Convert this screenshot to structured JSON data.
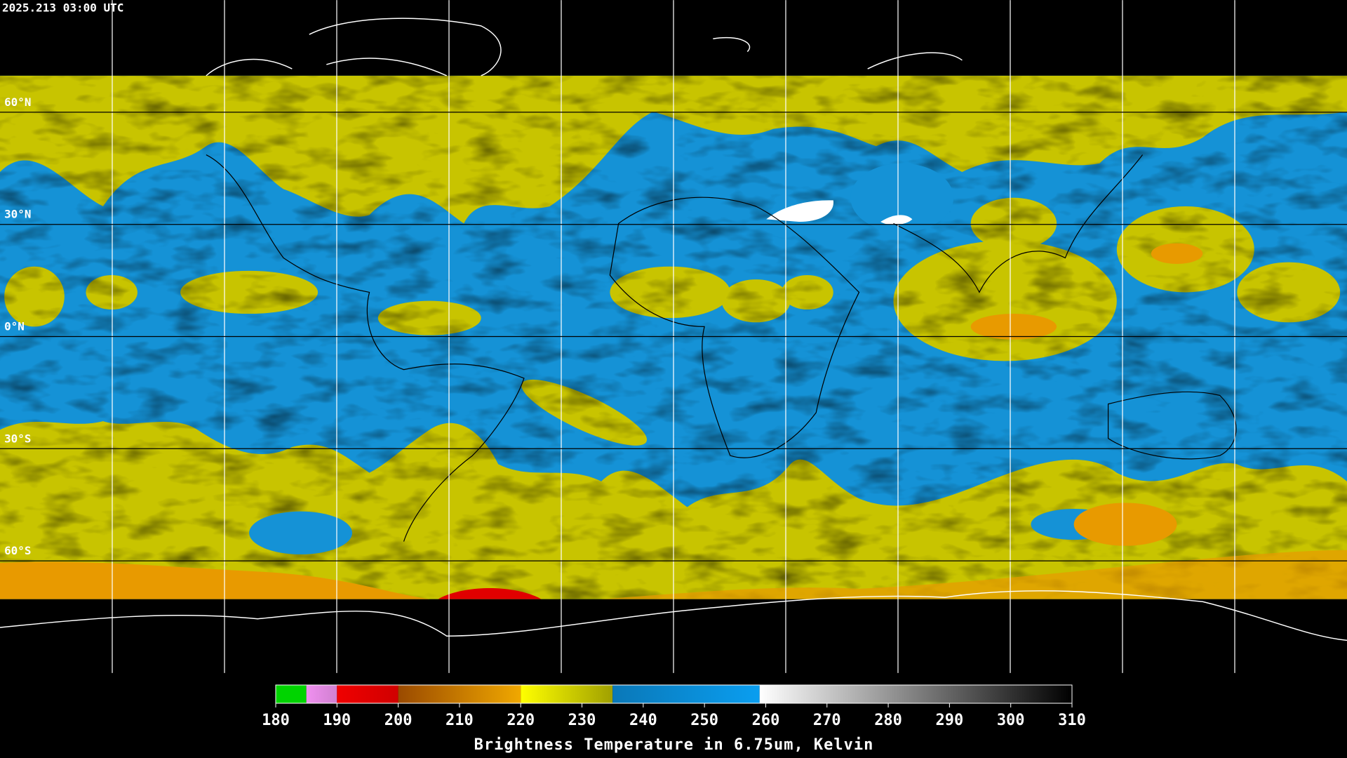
{
  "header": {
    "timestamp": "2025.213 03:00 UTC"
  },
  "map": {
    "latitudes": [
      {
        "value": 60,
        "label": "60°N"
      },
      {
        "value": 30,
        "label": "30°N"
      },
      {
        "value": 0,
        "label": "0°N"
      },
      {
        "value": -30,
        "label": "30°S"
      },
      {
        "value": -60,
        "label": "60°S"
      }
    ]
  },
  "colorbar": {
    "title": "Brightness Temperature in 6.75um, Kelvin",
    "range": [
      180,
      310
    ],
    "ticks": [
      180,
      190,
      200,
      210,
      220,
      230,
      240,
      250,
      260,
      270,
      280,
      290,
      300,
      310
    ],
    "segments": [
      {
        "from": 180,
        "to": 185,
        "colors": [
          "#00d400",
          "#00d400"
        ]
      },
      {
        "from": 185,
        "to": 190,
        "colors": [
          "#f090f0",
          "#d080d0"
        ]
      },
      {
        "from": 190,
        "to": 200,
        "colors": [
          "#f00000",
          "#d00000"
        ]
      },
      {
        "from": 200,
        "to": 220,
        "colors": [
          "#9a4a00",
          "#f0a800"
        ]
      },
      {
        "from": 220,
        "to": 235,
        "colors": [
          "#ffff00",
          "#a0a000"
        ]
      },
      {
        "from": 235,
        "to": 259,
        "colors": [
          "#0a78b8",
          "#0a9ef0"
        ]
      },
      {
        "from": 259,
        "to": 310,
        "colors": [
          "#ffffff",
          "#000000"
        ]
      }
    ]
  }
}
